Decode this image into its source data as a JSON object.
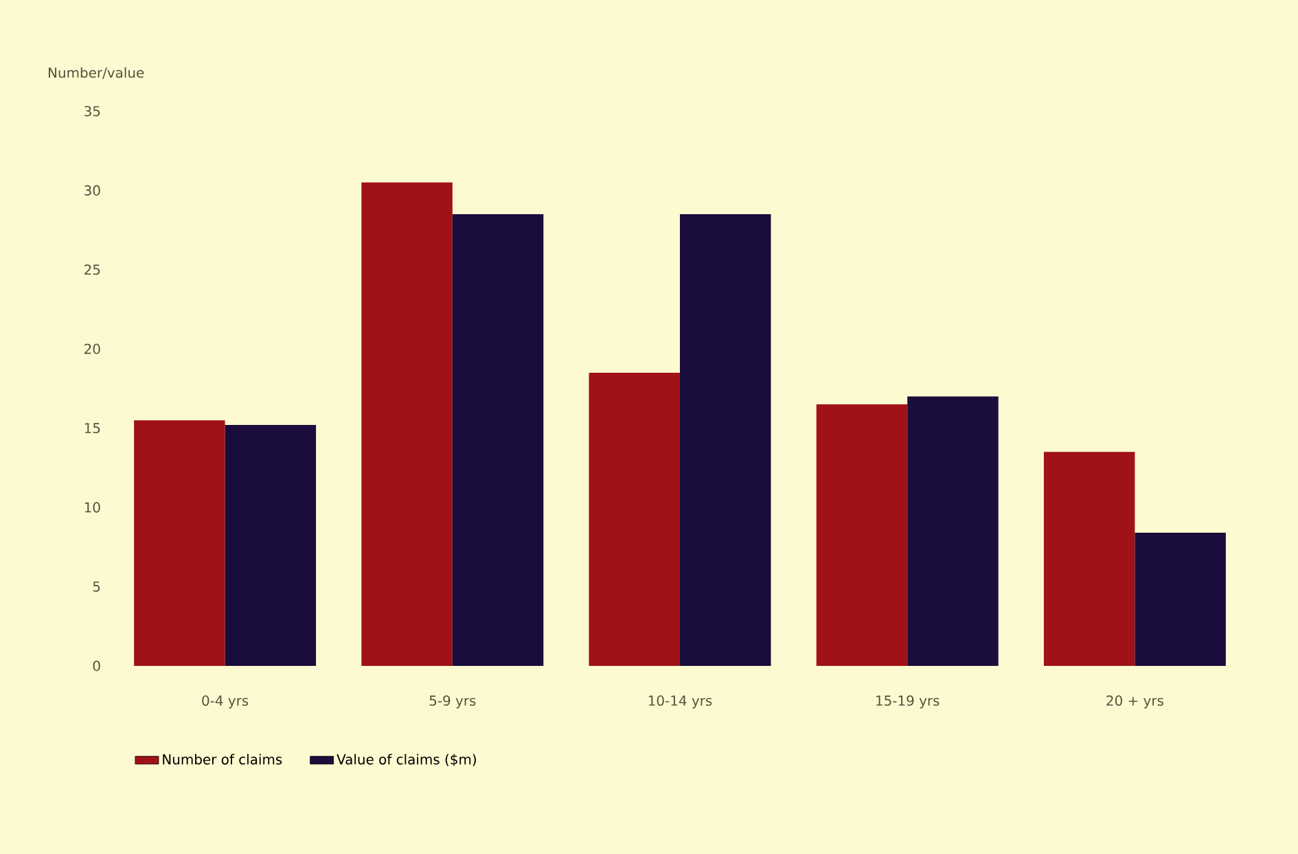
{
  "chart_data": {
    "type": "bar",
    "ylabel": "Number/value",
    "categories": [
      "0-4 yrs",
      "5-9 yrs",
      "10-14 yrs",
      "15-19 yrs",
      "20 + yrs"
    ],
    "series": [
      {
        "name": "Number of claims",
        "color": "#a01218",
        "values": [
          15.5,
          30.5,
          18.5,
          16.5,
          13.5
        ]
      },
      {
        "name": "Value of claims ($m)",
        "color": "#1a0c3c",
        "values": [
          15.2,
          28.5,
          28.5,
          17,
          8.4
        ]
      }
    ],
    "ylim": [
      0,
      35
    ],
    "yticks": [
      0,
      5,
      10,
      15,
      20,
      25,
      30,
      35
    ],
    "legend": "bottom"
  }
}
